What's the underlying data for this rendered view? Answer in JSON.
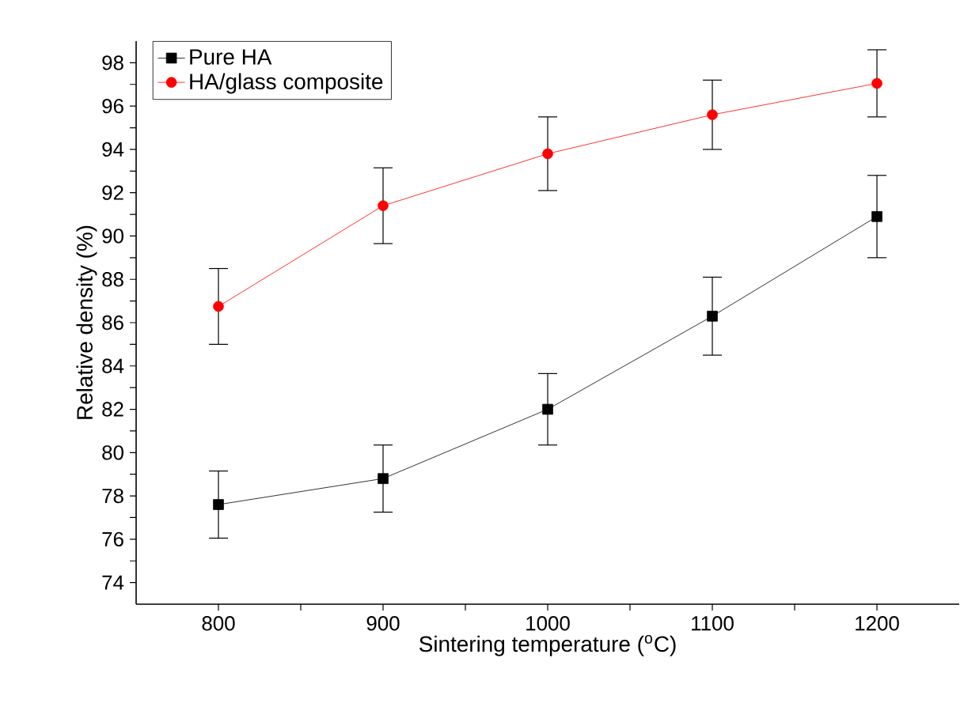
{
  "chart_data": {
    "type": "line",
    "xlabel": "Sintering temperature ($^{o}$C)",
    "ylabel": "Relative density (%)",
    "x": [
      800,
      900,
      1000,
      1100,
      1200
    ],
    "series": [
      {
        "name": "Pure HA",
        "color": "#000000",
        "marker": "square",
        "values": [
          77.6,
          78.8,
          82.0,
          86.3,
          90.9
        ],
        "errors": [
          1.55,
          1.55,
          1.65,
          1.8,
          1.9
        ]
      },
      {
        "name": "HA/glass composite",
        "color": "#ff0000",
        "marker": "circle",
        "values": [
          86.75,
          91.4,
          93.8,
          95.6,
          97.05
        ],
        "errors": [
          1.75,
          1.75,
          1.7,
          1.6,
          1.55
        ]
      }
    ],
    "xlim": [
      750,
      1250
    ],
    "ylim": [
      73,
      99
    ],
    "xticks": [
      800,
      {
        "value": 850,
        "label": null
      },
      900,
      {
        "value": 950,
        "label": null
      },
      1000,
      {
        "value": 1050,
        "label": null
      },
      1100,
      {
        "value": 1150,
        "label": null
      },
      1200
    ],
    "yticks": [
      74,
      {
        "value": 75,
        "label": null
      },
      76,
      {
        "value": 77,
        "label": null
      },
      78,
      {
        "value": 79,
        "label": null
      },
      80,
      {
        "value": 81,
        "label": null
      },
      82,
      {
        "value": 83,
        "label": null
      },
      84,
      {
        "value": 85,
        "label": null
      },
      86,
      {
        "value": 87,
        "label": null
      },
      88,
      {
        "value": 89,
        "label": null
      },
      90,
      {
        "value": 91,
        "label": null
      },
      92,
      {
        "value": 93,
        "label": null
      },
      94,
      {
        "value": 95,
        "label": null
      },
      96,
      {
        "value": 97,
        "label": null
      },
      98
    ],
    "grid": false,
    "legend": "top left",
    "line_style": "solid"
  }
}
